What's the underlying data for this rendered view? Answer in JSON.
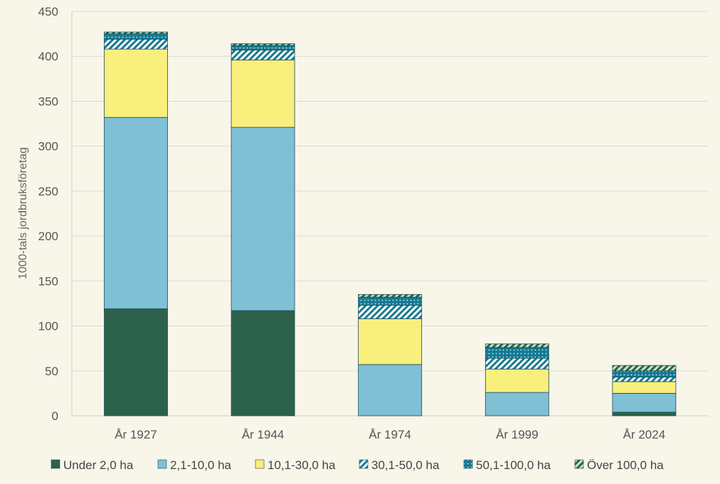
{
  "chart_data": {
    "type": "bar",
    "stacked": true,
    "title": "",
    "xlabel": "",
    "ylabel": "1000-tals jordbruksföretag",
    "ylim": [
      0,
      450
    ],
    "yticks": [
      0,
      50,
      100,
      150,
      200,
      250,
      300,
      350,
      400,
      450
    ],
    "grid": true,
    "legend_position": "bottom",
    "categories": [
      "År 1927",
      "År 1944",
      "År 1974",
      "År 1999",
      "År 2024"
    ],
    "series": [
      {
        "name": "Under 2,0 ha",
        "color": "#2c624b",
        "pattern": "solid",
        "values": [
          119,
          117,
          0,
          0,
          4
        ]
      },
      {
        "name": "2,1-10,0 ha",
        "color": "#7fc0d4",
        "pattern": "solid",
        "values": [
          213,
          204,
          57,
          26,
          21
        ]
      },
      {
        "name": "10,1-30,0 ha",
        "color": "#f9ef7c",
        "pattern": "solid",
        "values": [
          76,
          75,
          51,
          26,
          13
        ]
      },
      {
        "name": "30,1-50,0 ha",
        "color": "#157a93",
        "pattern": "diagonal-stripes",
        "values": [
          11,
          11,
          15,
          12,
          5
        ]
      },
      {
        "name": "50,1-100,0 ha",
        "color": "#157a93",
        "pattern": "dots",
        "values": [
          6,
          5,
          9,
          12,
          7
        ]
      },
      {
        "name": "Över 100,0 ha",
        "color": "#2c624b",
        "pattern": "green-diagonal-stripes",
        "values": [
          2,
          2,
          3,
          4,
          6
        ]
      }
    ]
  }
}
